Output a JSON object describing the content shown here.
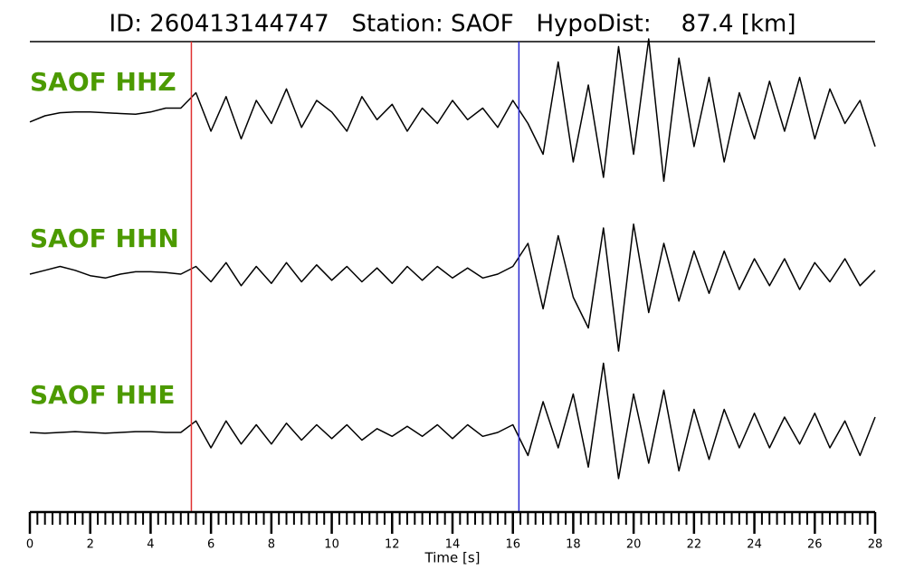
{
  "chart_data": {
    "type": "seismogram",
    "title": "ID: 260413144747   Station: SAOF   HypoDist:    87.4 [km]",
    "xlabel": "Time [s]",
    "xlim": [
      0,
      28
    ],
    "xticks": [
      0,
      2,
      4,
      6,
      8,
      10,
      12,
      14,
      16,
      18,
      20,
      22,
      24,
      26,
      28
    ],
    "xminor_step": 0.25,
    "ylim": [
      -1,
      1
    ],
    "label_color": "#4c9a00",
    "picks": [
      {
        "x": 5.35,
        "color": "#e03030"
      },
      {
        "x": 16.2,
        "color": "#2a2ad0"
      }
    ],
    "x": [
      0,
      0.5,
      1,
      1.5,
      2,
      2.5,
      3,
      3.5,
      4,
      4.5,
      5,
      5.5,
      6,
      6.5,
      7,
      7.5,
      8,
      8.5,
      9,
      9.5,
      10,
      10.5,
      11,
      11.5,
      12,
      12.5,
      13,
      13.5,
      14,
      14.5,
      15,
      15.5,
      16,
      16.5,
      17,
      17.5,
      18,
      18.5,
      19,
      19.5,
      20,
      20.5,
      21,
      21.5,
      22,
      22.5,
      23,
      23.5,
      24,
      24.5,
      25,
      25.5,
      26,
      26.5,
      27,
      27.5,
      28
    ],
    "series": [
      {
        "name": "SAOF HHZ",
        "color": "#000000",
        "values": [
          -0.08,
          0.0,
          0.04,
          0.05,
          0.05,
          0.04,
          0.03,
          0.02,
          0.05,
          0.1,
          0.1,
          0.3,
          -0.2,
          0.25,
          -0.3,
          0.2,
          -0.1,
          0.35,
          -0.15,
          0.2,
          0.05,
          -0.2,
          0.25,
          -0.05,
          0.15,
          -0.2,
          0.1,
          -0.1,
          0.2,
          -0.05,
          0.1,
          -0.15,
          0.2,
          -0.1,
          -0.5,
          0.7,
          -0.6,
          0.4,
          -0.8,
          0.9,
          -0.5,
          1.0,
          -0.85,
          0.75,
          -0.4,
          0.5,
          -0.6,
          0.3,
          -0.3,
          0.45,
          -0.2,
          0.5,
          -0.3,
          0.35,
          -0.1,
          0.2,
          -0.4
        ]
      },
      {
        "name": "SAOF HHN",
        "color": "#000000",
        "values": [
          0.0,
          0.05,
          0.1,
          0.05,
          -0.02,
          -0.05,
          0.0,
          0.03,
          0.03,
          0.02,
          0.0,
          0.1,
          -0.1,
          0.15,
          -0.15,
          0.1,
          -0.12,
          0.15,
          -0.1,
          0.12,
          -0.08,
          0.1,
          -0.1,
          0.08,
          -0.12,
          0.1,
          -0.08,
          0.1,
          -0.05,
          0.08,
          -0.05,
          0.0,
          0.1,
          0.4,
          -0.45,
          0.5,
          -0.3,
          -0.7,
          0.6,
          -1.0,
          0.65,
          -0.5,
          0.4,
          -0.35,
          0.3,
          -0.25,
          0.3,
          -0.2,
          0.2,
          -0.15,
          0.2,
          -0.2,
          0.15,
          -0.1,
          0.2,
          -0.15,
          0.05
        ]
      },
      {
        "name": "SAOF HHE",
        "color": "#000000",
        "values": [
          0.0,
          -0.01,
          0.0,
          0.01,
          0.0,
          -0.01,
          0.0,
          0.01,
          0.01,
          0.0,
          0.0,
          0.15,
          -0.2,
          0.15,
          -0.15,
          0.1,
          -0.15,
          0.12,
          -0.1,
          0.1,
          -0.08,
          0.1,
          -0.1,
          0.05,
          -0.05,
          0.08,
          -0.05,
          0.1,
          -0.08,
          0.1,
          -0.05,
          0.0,
          0.1,
          -0.3,
          0.4,
          -0.2,
          0.5,
          -0.45,
          0.9,
          -0.6,
          0.5,
          -0.4,
          0.55,
          -0.5,
          0.3,
          -0.35,
          0.3,
          -0.2,
          0.25,
          -0.2,
          0.2,
          -0.15,
          0.25,
          -0.2,
          0.15,
          -0.3,
          0.2
        ]
      }
    ]
  }
}
